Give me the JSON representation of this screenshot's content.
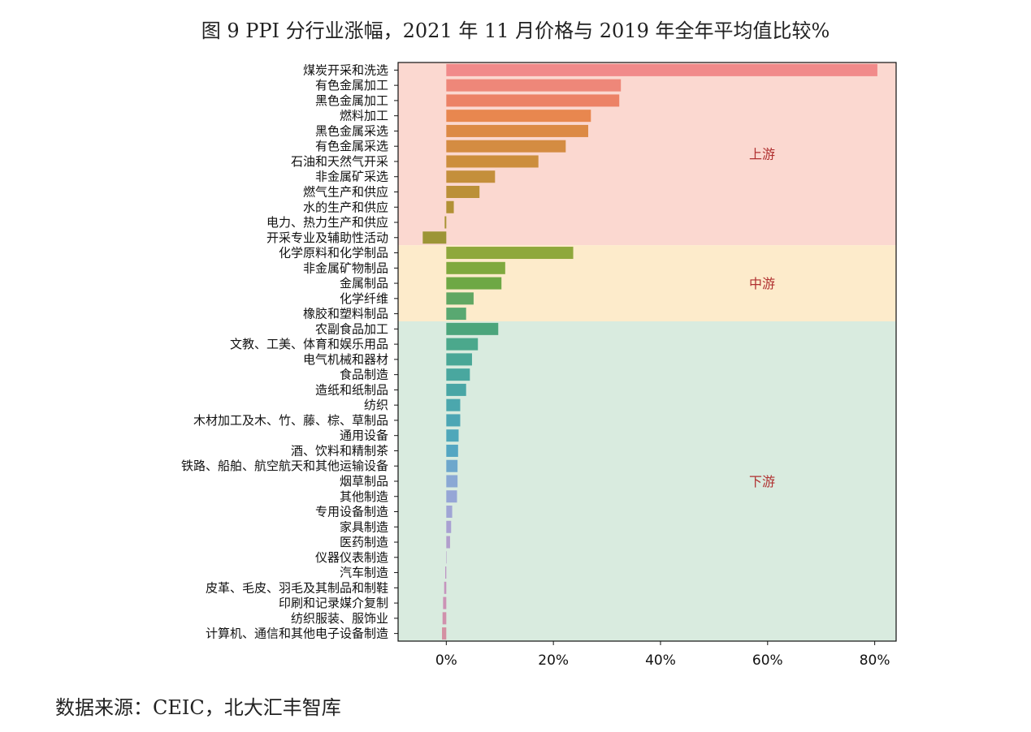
{
  "title": "图 9 PPI 分行业涨幅，2021 年 11 月价格与 2019 年全年平均值比较%",
  "source": "数据来源：CEIC，北大汇丰智库",
  "chart_data": {
    "type": "bar",
    "orientation": "horizontal",
    "xlim": [
      -9,
      84
    ],
    "xticks": [
      0,
      20,
      40,
      60,
      80
    ],
    "xtick_labels": [
      "0%",
      "20%",
      "40%",
      "60%",
      "80%"
    ],
    "grid": false,
    "categories": [
      "煤炭开采和洗选",
      "有色金属加工",
      "黑色金属加工",
      "燃料加工",
      "黑色金属采选",
      "有色金属采选",
      "石油和天然气开采",
      "非金属矿采选",
      "燃气生产和供应",
      "水的生产和供应",
      "电力、热力生产和供应",
      "开采专业及辅助性活动",
      "化学原料和化学制品",
      "非金属矿物制品",
      "金属制品",
      "化学纤维",
      "橡胶和塑料制品",
      "农副食品加工",
      "文教、工美、体育和娱乐用品",
      "电气机械和器材",
      "食品制造",
      "造纸和纸制品",
      "纺织",
      "木材加工及木、竹、藤、棕、草制品",
      "通用设备",
      "酒、饮料和精制茶",
      "铁路、船舶、航空航天和其他运输设备",
      "烟草制品",
      "其他制造",
      "专用设备制造",
      "家具制造",
      "医药制造",
      "仪器仪表制造",
      "汽车制造",
      "皮革、毛皮、羽毛及其制品和制鞋",
      "印刷和记录媒介复制",
      "纺织服装、服饰业",
      "计算机、通信和其他电子设备制造"
    ],
    "values": [
      80.5,
      32.6,
      32.3,
      27.0,
      26.5,
      22.3,
      17.2,
      9.1,
      6.2,
      1.4,
      -0.3,
      -4.4,
      23.7,
      11.0,
      10.3,
      5.1,
      3.7,
      9.7,
      5.9,
      4.8,
      4.4,
      3.7,
      2.6,
      2.6,
      2.3,
      2.2,
      2.1,
      2.1,
      2.0,
      1.1,
      0.9,
      0.7,
      0.0,
      -0.2,
      -0.4,
      -0.6,
      -0.7,
      -0.8
    ],
    "colors": [
      "#f18a8a",
      "#ee8779",
      "#ec8266",
      "#e8874f",
      "#dc8a45",
      "#d48c42",
      "#cc8e3d",
      "#c48f3b",
      "#bb9038",
      "#b29135",
      "#a89333",
      "#9c9536",
      "#8ea83c",
      "#7fa93e",
      "#6ea845",
      "#61a763",
      "#59a871",
      "#4ca57c",
      "#4ba88c",
      "#4aa797",
      "#49a79f",
      "#49a6a5",
      "#4ba7ad",
      "#4ca6b4",
      "#4fa7ba",
      "#54a6c2",
      "#6ea7cc",
      "#8aa8d4",
      "#96a6d6",
      "#a0a5d5",
      "#a9a1d2",
      "#b19ecc",
      "#b49ac8",
      "#bd97c4",
      "#c595be",
      "#cc93b6",
      "#d091ac",
      "#d490a2"
    ],
    "zones": [
      {
        "label": "上游",
        "from": 0,
        "to": 11,
        "color": "#fbd8d0"
      },
      {
        "label": "中游",
        "from": 12,
        "to": 16,
        "color": "#fdebcb"
      },
      {
        "label": "下游",
        "from": 17,
        "to": 37,
        "color": "#d9ebdf"
      }
    ]
  }
}
